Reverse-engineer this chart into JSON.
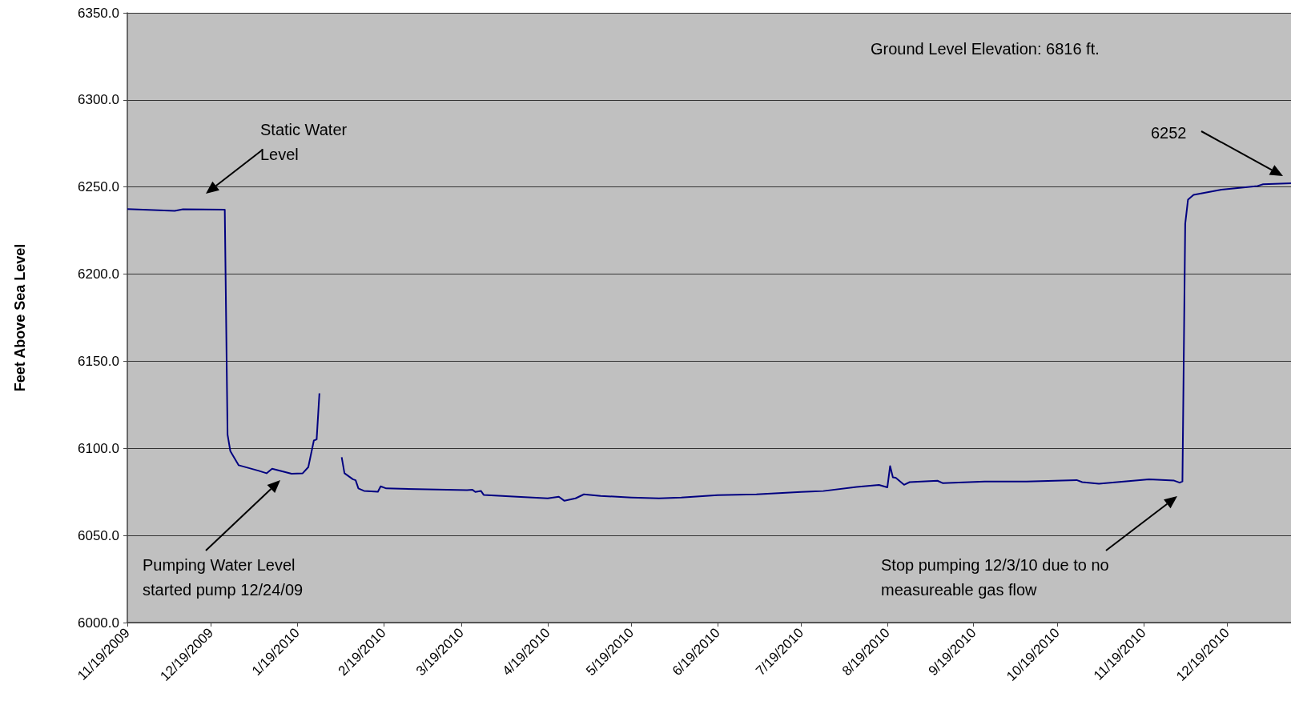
{
  "chart_data": {
    "type": "line",
    "ylabel": "Feet Above Sea Level",
    "x": [
      "2009-11-19",
      "2009-12-06",
      "2009-12-09",
      "2009-12-24",
      "2009-12-25",
      "2009-12-26",
      "2009-12-29",
      "2010-01-05",
      "2010-01-08",
      "2010-01-10",
      "2010-01-17",
      "2010-01-21",
      "2010-01-23",
      "2010-01-25",
      "2010-01-26",
      "2010-01-27",
      "2010-01-31",
      "2010-02-04",
      "2010-02-05",
      "2010-02-08",
      "2010-02-09",
      "2010-02-10",
      "2010-02-12",
      "2010-02-17",
      "2010-02-18",
      "2010-02-20",
      "2010-03-21",
      "2010-03-23",
      "2010-03-24",
      "2010-03-26",
      "2010-03-27",
      "2010-04-08",
      "2010-04-19",
      "2010-04-23",
      "2010-04-25",
      "2010-04-29",
      "2010-05-02",
      "2010-05-08",
      "2010-05-19",
      "2010-05-29",
      "2010-06-06",
      "2010-06-19",
      "2010-07-03",
      "2010-07-19",
      "2010-07-27",
      "2010-08-08",
      "2010-08-16",
      "2010-08-19",
      "2010-08-20",
      "2010-08-21",
      "2010-08-22",
      "2010-08-25",
      "2010-08-27",
      "2010-09-06",
      "2010-09-08",
      "2010-09-23",
      "2010-10-08",
      "2010-10-26",
      "2010-10-28",
      "2010-11-03",
      "2010-11-21",
      "2010-11-30",
      "2010-12-02",
      "2010-12-03",
      "2010-12-04",
      "2010-12-05",
      "2010-12-07",
      "2010-12-17",
      "2010-12-30",
      "2011-01-01",
      "2011-01-11"
    ],
    "series": [
      {
        "color": "#000080",
        "values": [
          6237.3,
          6236.3,
          6237.2,
          6237,
          6107.9,
          6098.4,
          6090.3,
          6087.2,
          6085.7,
          6088.3,
          6085.4,
          6085.7,
          6089.2,
          6104.5,
          6105.1,
          6131.6,
          null,
          6094.9,
          6085.7,
          6082.3,
          6081.7,
          6077,
          6075.6,
          6075.1,
          6078.2,
          6077,
          6076,
          6076.2,
          6075,
          6075.6,
          6073.3,
          6072.2,
          6071.3,
          6072.2,
          6069.9,
          6071.3,
          6073.6,
          6072.7,
          6071.8,
          6071.3,
          6071.8,
          6073.2,
          6073.6,
          6075,
          6075.5,
          6077.9,
          6079,
          6077.6,
          6089.8,
          6083.4,
          6083.1,
          6079.1,
          6080.6,
          6081.4,
          6080,
          6080.9,
          6080.9,
          6081.8,
          6080.6,
          6079.7,
          6082.2,
          6081.5,
          6080.3,
          6081,
          6228.9,
          6242.7,
          6245.5,
          6248.5,
          6250.6,
          6251.6,
          6252.2
        ]
      }
    ],
    "xlim": [
      "2009-11-19",
      "2011-01-11"
    ],
    "xticks": [
      {
        "value": "2009-11-19",
        "label": "11/19/2009"
      },
      {
        "value": "2009-12-19",
        "label": "12/19/2009"
      },
      {
        "value": "2010-01-19",
        "label": "1/19/2010"
      },
      {
        "value": "2010-02-19",
        "label": "2/19/2010"
      },
      {
        "value": "2010-03-19",
        "label": "3/19/2010"
      },
      {
        "value": "2010-04-19",
        "label": "4/19/2010"
      },
      {
        "value": "2010-05-19",
        "label": "5/19/2010"
      },
      {
        "value": "2010-06-19",
        "label": "6/19/2010"
      },
      {
        "value": "2010-07-19",
        "label": "7/19/2010"
      },
      {
        "value": "2010-08-19",
        "label": "8/19/2010"
      },
      {
        "value": "2010-09-19",
        "label": "9/19/2010"
      },
      {
        "value": "2010-10-19",
        "label": "10/19/2010"
      },
      {
        "value": "2010-11-19",
        "label": "11/19/2010"
      },
      {
        "value": "2010-12-19",
        "label": "12/19/2010"
      }
    ],
    "ylim": [
      6000,
      6350
    ],
    "yticks": [
      {
        "value": 6000,
        "label": "6000.0"
      },
      {
        "value": 6050,
        "label": "6050.0"
      },
      {
        "value": 6100,
        "label": "6100.0"
      },
      {
        "value": 6150,
        "label": "6150.0"
      },
      {
        "value": 6200,
        "label": "6200.0"
      },
      {
        "value": 6250,
        "label": "6250.0"
      },
      {
        "value": 6300,
        "label": "6300.0"
      },
      {
        "value": 6350,
        "label": "6350.0"
      }
    ],
    "grid": "y",
    "annotations": [
      "Ground Level Elevation: 6816 ft.",
      "Static Water Level",
      "6252",
      "Pumping Water Level started pump 12/24/09",
      "Stop pumping 12/3/10 due to no measureable gas flow"
    ]
  }
}
